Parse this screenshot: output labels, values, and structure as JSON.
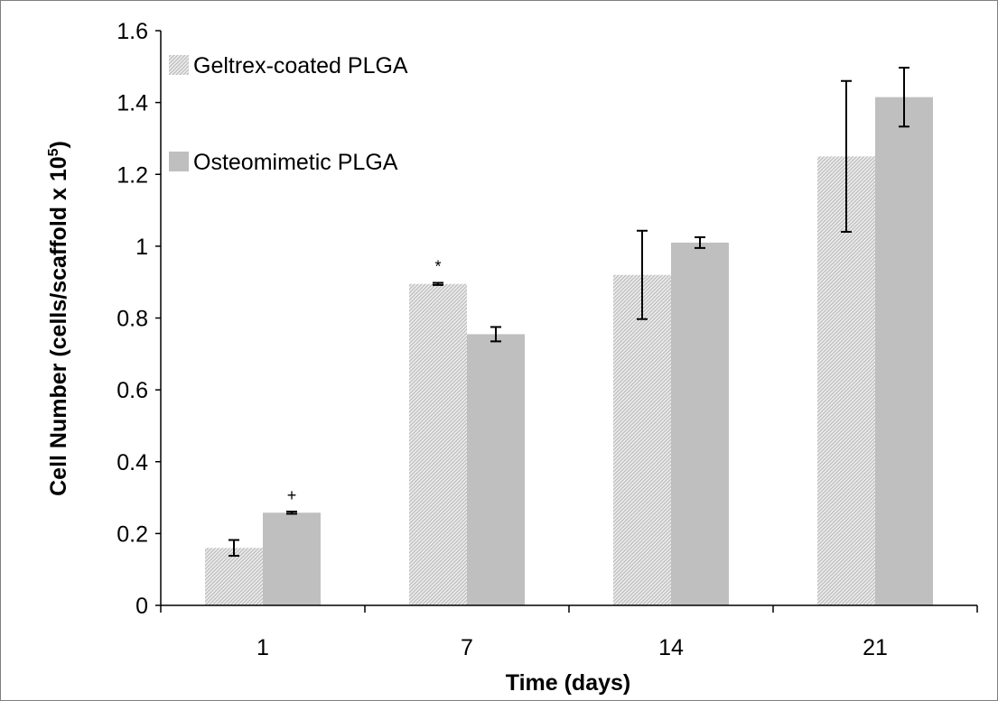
{
  "chart_data": {
    "type": "bar",
    "categories": [
      "1",
      "7",
      "14",
      "21"
    ],
    "series": [
      {
        "name": "Geltrex-coated PLGA",
        "values": [
          0.16,
          0.895,
          0.92,
          1.25
        ],
        "errors": [
          0.022,
          0.003,
          0.123,
          0.21
        ],
        "color": "#d4d4d4",
        "pattern": "diagonal-hatch"
      },
      {
        "name": "Osteomimetic PLGA",
        "values": [
          0.258,
          0.755,
          1.01,
          1.415
        ],
        "errors": [
          0.003,
          0.02,
          0.015,
          0.082
        ],
        "color": "#bfbfbf",
        "pattern": "solid"
      }
    ],
    "annotations": [
      {
        "text": "+",
        "category": "1",
        "series": 1
      },
      {
        "text": "*",
        "category": "7",
        "series": 0
      }
    ],
    "xlabel": "Time (days)",
    "ylabel": "Cell Number (cells/scaffold x 10",
    "ylabel_superscript": "5",
    "ylabel_suffix": ")",
    "ylim": [
      0,
      1.6
    ],
    "yticks": [
      "0",
      "0.2",
      "0.4",
      "0.6",
      "0.8",
      "1",
      "1.2",
      "1.4",
      "1.6"
    ],
    "grid": false,
    "legend_position": "top-left"
  }
}
